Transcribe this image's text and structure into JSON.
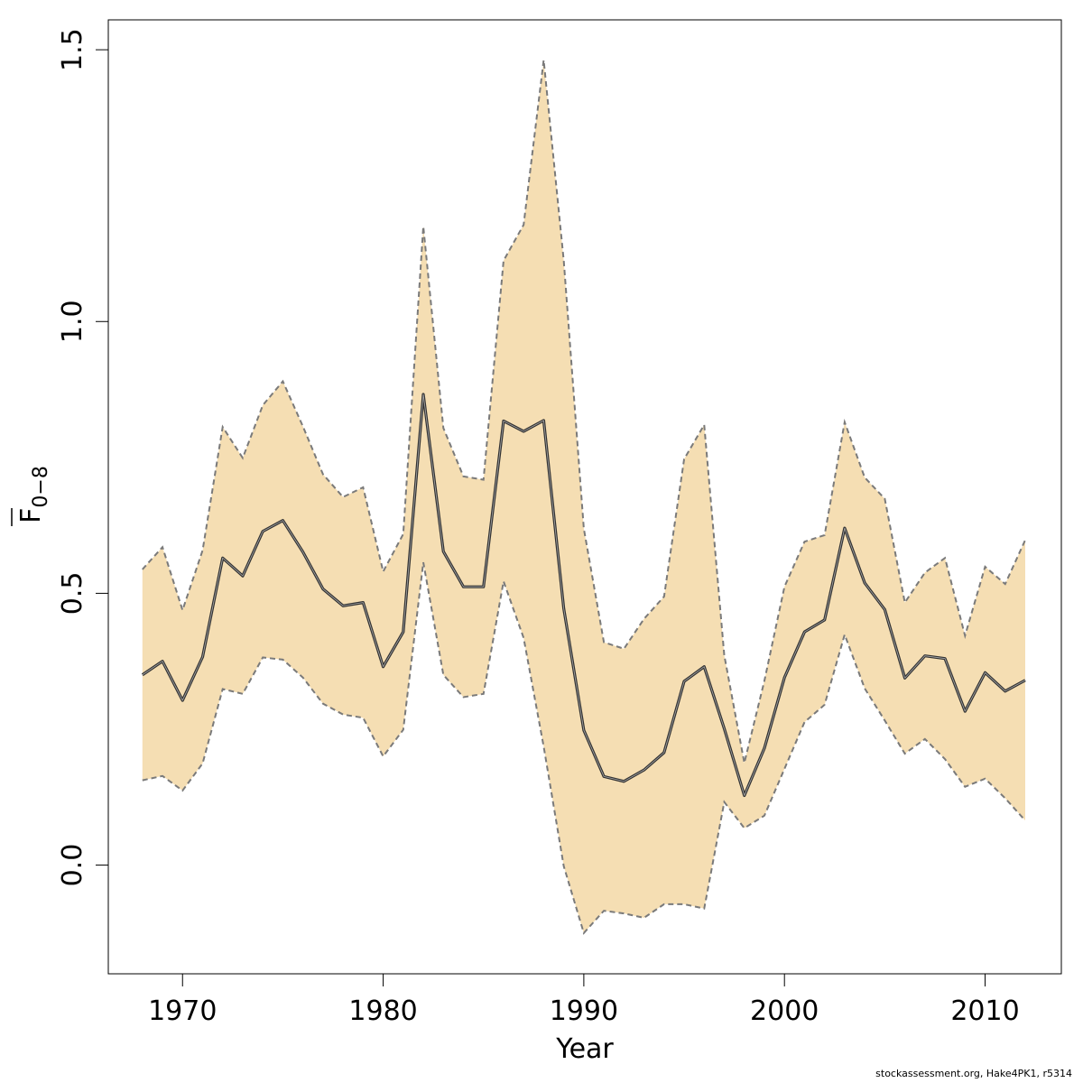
{
  "chart_data": {
    "type": "area",
    "title": "",
    "xlabel": "Year",
    "ylabel": "F",
    "ylabel_subscript": "0−8",
    "xlim": [
      1966.3,
      2013.8
    ],
    "ylim": [
      -0.2,
      1.555
    ],
    "x_ticks": [
      1970,
      1980,
      1990,
      2000,
      2010
    ],
    "y_ticks": [
      0.0,
      0.5,
      1.0,
      1.5
    ],
    "x_tick_labels": [
      "1970",
      "1980",
      "1990",
      "2000",
      "2010"
    ],
    "y_tick_labels": [
      "0.0",
      "0.5",
      "1.0",
      "1.5"
    ],
    "grid": false,
    "band_color": "#f5deb3",
    "line_color": "#333333",
    "bound_color": "#7a7a7a",
    "x": [
      1968,
      1969,
      1970,
      1971,
      1972,
      1973,
      1974,
      1975,
      1976,
      1977,
      1978,
      1979,
      1980,
      1981,
      1982,
      1983,
      1984,
      1985,
      1986,
      1987,
      1988,
      1989,
      1990,
      1991,
      1992,
      1993,
      1994,
      1995,
      1996,
      1997,
      1998,
      1999,
      2000,
      2001,
      2002,
      2003,
      2004,
      2005,
      2006,
      2007,
      2008,
      2009,
      2010,
      2011,
      2012
    ],
    "series": [
      {
        "values": [
          0.35,
          0.375,
          0.303,
          0.383,
          0.565,
          0.532,
          0.614,
          0.634,
          0.576,
          0.508,
          0.477,
          0.483,
          0.365,
          0.429,
          0.866,
          0.577,
          0.512,
          0.512,
          0.817,
          0.798,
          0.818,
          0.472,
          0.248,
          0.163,
          0.154,
          0.175,
          0.207,
          0.338,
          0.365,
          0.251,
          0.128,
          0.215,
          0.345,
          0.429,
          0.451,
          0.62,
          0.519,
          0.47,
          0.344,
          0.385,
          0.38,
          0.283,
          0.354,
          0.32,
          0.34
        ]
      },
      {
        "values": [
          0.156,
          0.164,
          0.137,
          0.187,
          0.324,
          0.315,
          0.382,
          0.378,
          0.345,
          0.297,
          0.277,
          0.271,
          0.2,
          0.249,
          0.557,
          0.35,
          0.309,
          0.315,
          0.522,
          0.418,
          0.218,
          -0.002,
          -0.125,
          -0.084,
          -0.089,
          -0.097,
          -0.072,
          -0.072,
          -0.08,
          0.116,
          0.068,
          0.091,
          0.177,
          0.263,
          0.295,
          0.424,
          0.325,
          0.266,
          0.205,
          0.232,
          0.195,
          0.144,
          0.159,
          0.123,
          0.082
        ]
      },
      {
        "values": [
          0.544,
          0.585,
          0.469,
          0.579,
          0.806,
          0.749,
          0.846,
          0.89,
          0.807,
          0.719,
          0.677,
          0.695,
          0.54,
          0.609,
          1.175,
          0.804,
          0.715,
          0.709,
          1.112,
          1.178,
          1.481,
          1.112,
          0.619,
          0.41,
          0.398,
          0.453,
          0.494,
          0.747,
          0.81,
          0.386,
          0.188,
          0.339,
          0.512,
          0.595,
          0.607,
          0.815,
          0.713,
          0.674,
          0.483,
          0.538,
          0.565,
          0.422,
          0.549,
          0.517,
          0.598
        ]
      }
    ]
  },
  "footer_text": "stockassessment.org, Hake4PK1, r5314"
}
